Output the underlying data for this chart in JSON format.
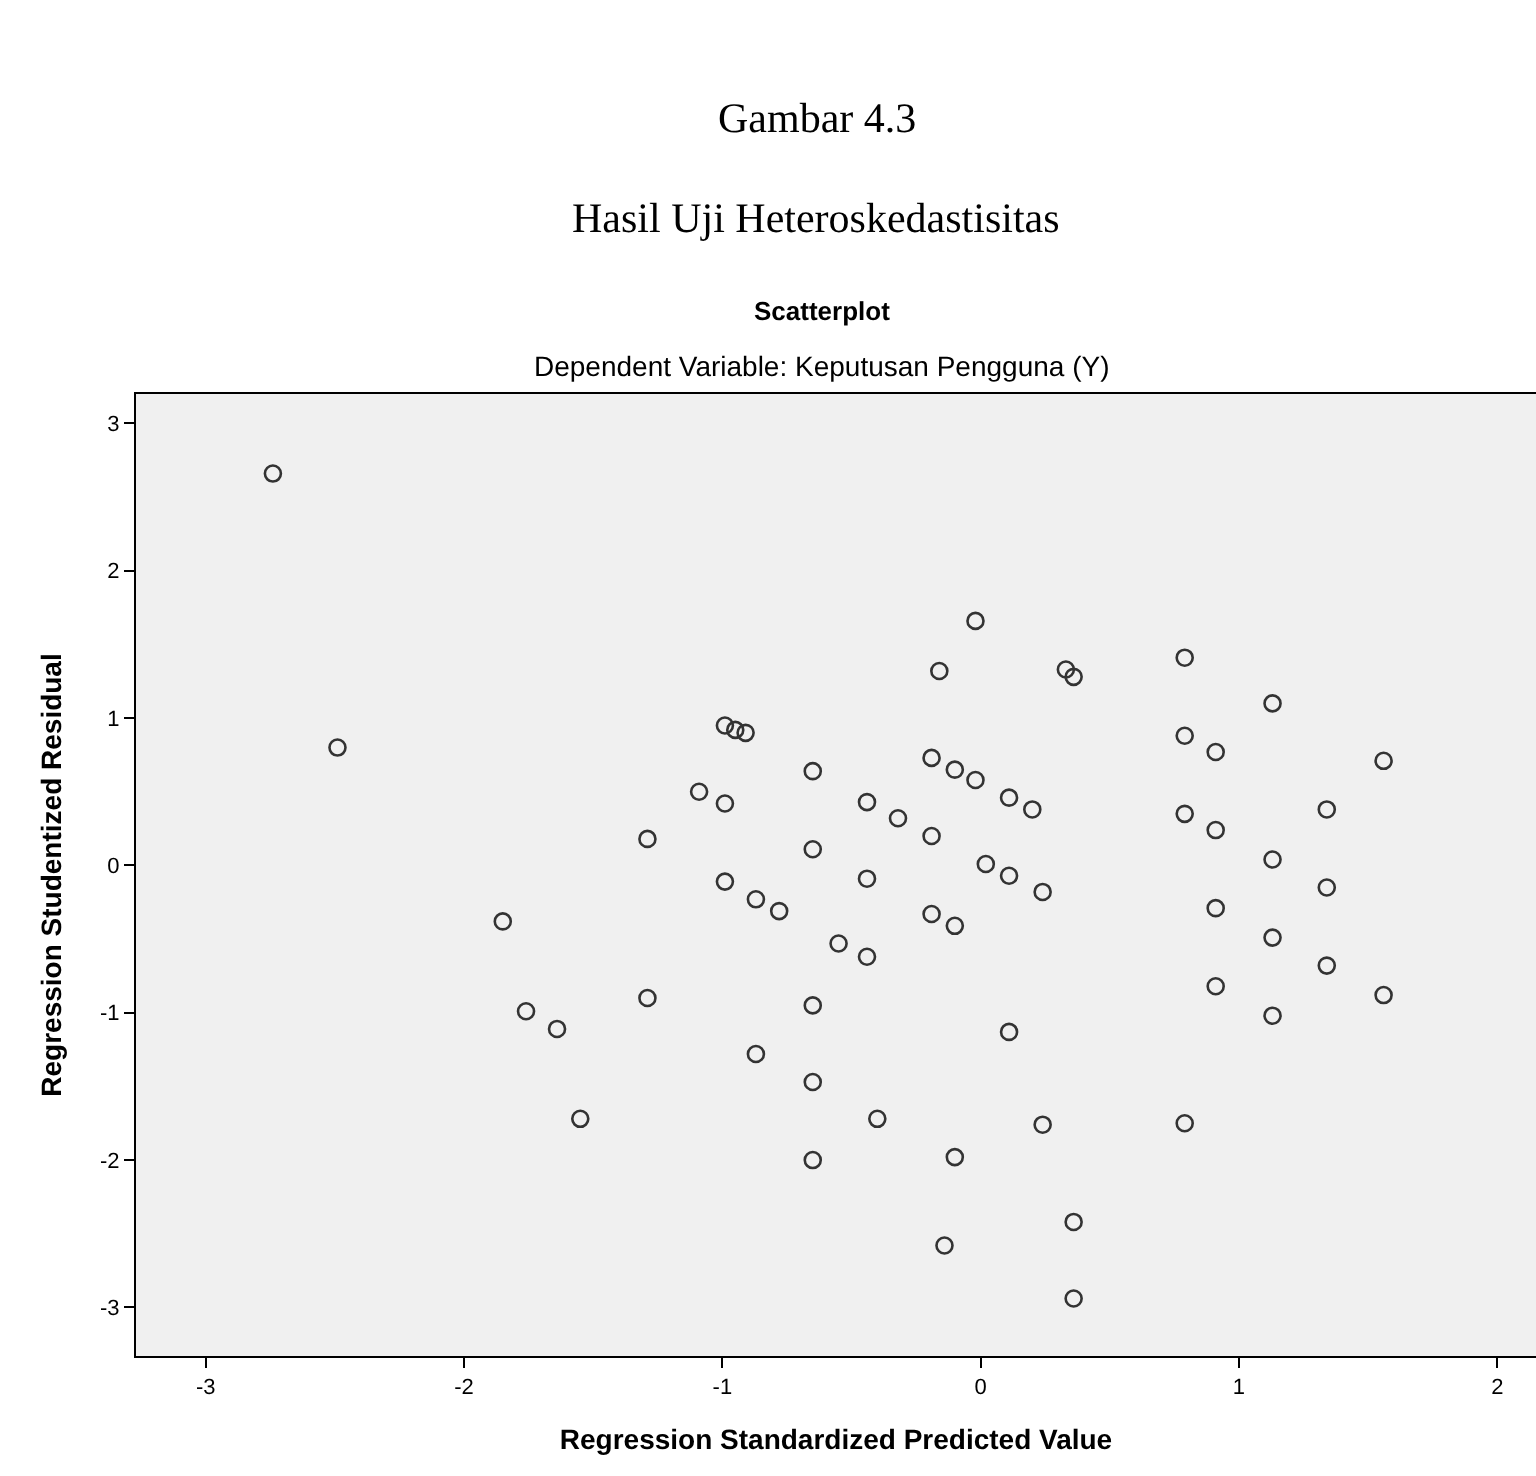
{
  "chart_data": {
    "type": "scatter",
    "title": "Gambar 4.3",
    "subtitle": "Hasil Uji Heteroskedastisitas",
    "annotations": [
      "Scatterplot",
      "Dependent Variable: Keputusan Pengguna (Y)"
    ],
    "xlabel": "Regression Standardized Predicted Value",
    "ylabel": "Regression Studentized Residual",
    "x": [
      -2.74,
      -2.49,
      -0.99,
      -0.95,
      -0.91,
      -0.65,
      -1.09,
      -0.99,
      -1.29,
      -0.65,
      -0.99,
      -0.87,
      -0.78,
      -1.85,
      -0.55,
      -1.29,
      -0.65,
      -1.76,
      -1.64,
      -0.87,
      -0.65,
      -1.55,
      -0.65,
      -0.02,
      -0.16,
      0.33,
      0.36,
      0.79,
      1.13,
      0.79,
      0.91,
      1.56,
      -0.19,
      -0.1,
      -0.02,
      0.11,
      0.2,
      -0.44,
      -0.32,
      -0.19,
      0.79,
      0.91,
      1.34,
      1.13,
      1.34,
      -0.44,
      0.02,
      0.11,
      0.24,
      -0.19,
      -0.1,
      -0.44,
      0.11,
      -0.4,
      0.24,
      0.79,
      -0.1,
      0.36,
      -0.14,
      0.36,
      0.91,
      1.13,
      1.34,
      0.91,
      1.13,
      1.56
    ],
    "values": [
      2.66,
      0.8,
      0.95,
      0.92,
      0.9,
      0.64,
      0.5,
      0.42,
      0.18,
      0.11,
      -0.11,
      -0.23,
      -0.31,
      -0.38,
      -0.53,
      -0.9,
      -0.95,
      -0.99,
      -1.11,
      -1.28,
      -1.47,
      -1.72,
      -2.0,
      1.66,
      1.32,
      1.33,
      1.28,
      1.41,
      1.1,
      0.88,
      0.77,
      0.71,
      0.73,
      0.65,
      0.58,
      0.46,
      0.38,
      0.43,
      0.32,
      0.2,
      0.35,
      0.24,
      0.38,
      0.04,
      -0.15,
      -0.09,
      0.01,
      -0.07,
      -0.18,
      -0.33,
      -0.41,
      -0.62,
      -1.13,
      -1.72,
      -1.76,
      -1.75,
      -1.98,
      -2.42,
      -2.58,
      -2.94,
      -0.29,
      -0.49,
      -0.68,
      -0.82,
      -1.02,
      -0.88
    ],
    "color": "#333333",
    "marker": "circle",
    "xlim": [
      -3.27,
      2.15
    ],
    "ylim": [
      -3.33,
      3.2
    ],
    "xticks": [
      -3,
      -2,
      -1,
      0,
      1,
      2
    ],
    "yticks": [
      -3,
      -2,
      -1,
      0,
      1,
      2,
      3
    ],
    "grid": false,
    "legend": false
  }
}
